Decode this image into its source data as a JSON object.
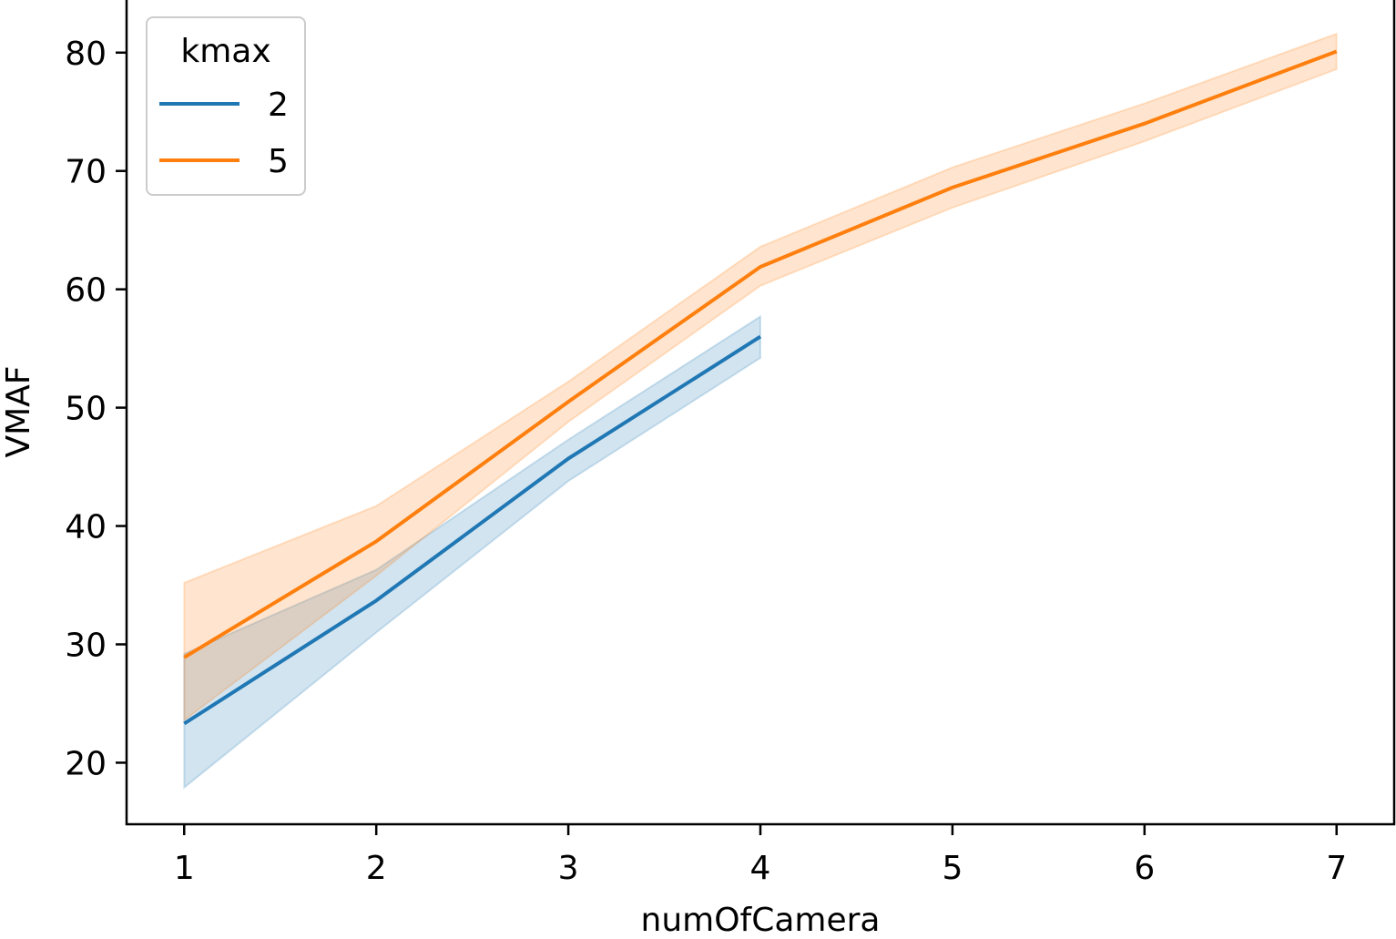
{
  "chart_data": {
    "type": "line",
    "title": "",
    "xlabel": "numOfCamera",
    "ylabel": "VMAF",
    "xlim": [
      0.7,
      7.3
    ],
    "ylim": [
      14.8,
      84.6
    ],
    "x_ticks": [
      1,
      2,
      3,
      4,
      5,
      6,
      7
    ],
    "y_ticks": [
      20,
      30,
      40,
      50,
      60,
      70,
      80
    ],
    "grid": false,
    "legend": {
      "title": "kmax",
      "placement": "top-left"
    },
    "series": [
      {
        "name": "2",
        "color": "#1f77b4",
        "x": [
          1,
          2,
          3,
          4
        ],
        "y": [
          23.3,
          33.7,
          45.7,
          56.0
        ],
        "ci_low": [
          17.9,
          31.0,
          43.8,
          54.2
        ],
        "ci_high": [
          29.2,
          36.3,
          47.3,
          57.7
        ]
      },
      {
        "name": "5",
        "color": "#ff7f0e",
        "x": [
          1,
          2,
          3,
          4,
          5,
          6,
          7
        ],
        "y": [
          28.9,
          38.7,
          50.5,
          61.9,
          68.6,
          74.0,
          80.1
        ],
        "ci_low": [
          23.6,
          35.8,
          48.8,
          60.3,
          66.9,
          72.5,
          78.6
        ],
        "ci_high": [
          35.2,
          41.7,
          52.2,
          63.6,
          70.3,
          75.7,
          81.6
        ]
      }
    ]
  }
}
